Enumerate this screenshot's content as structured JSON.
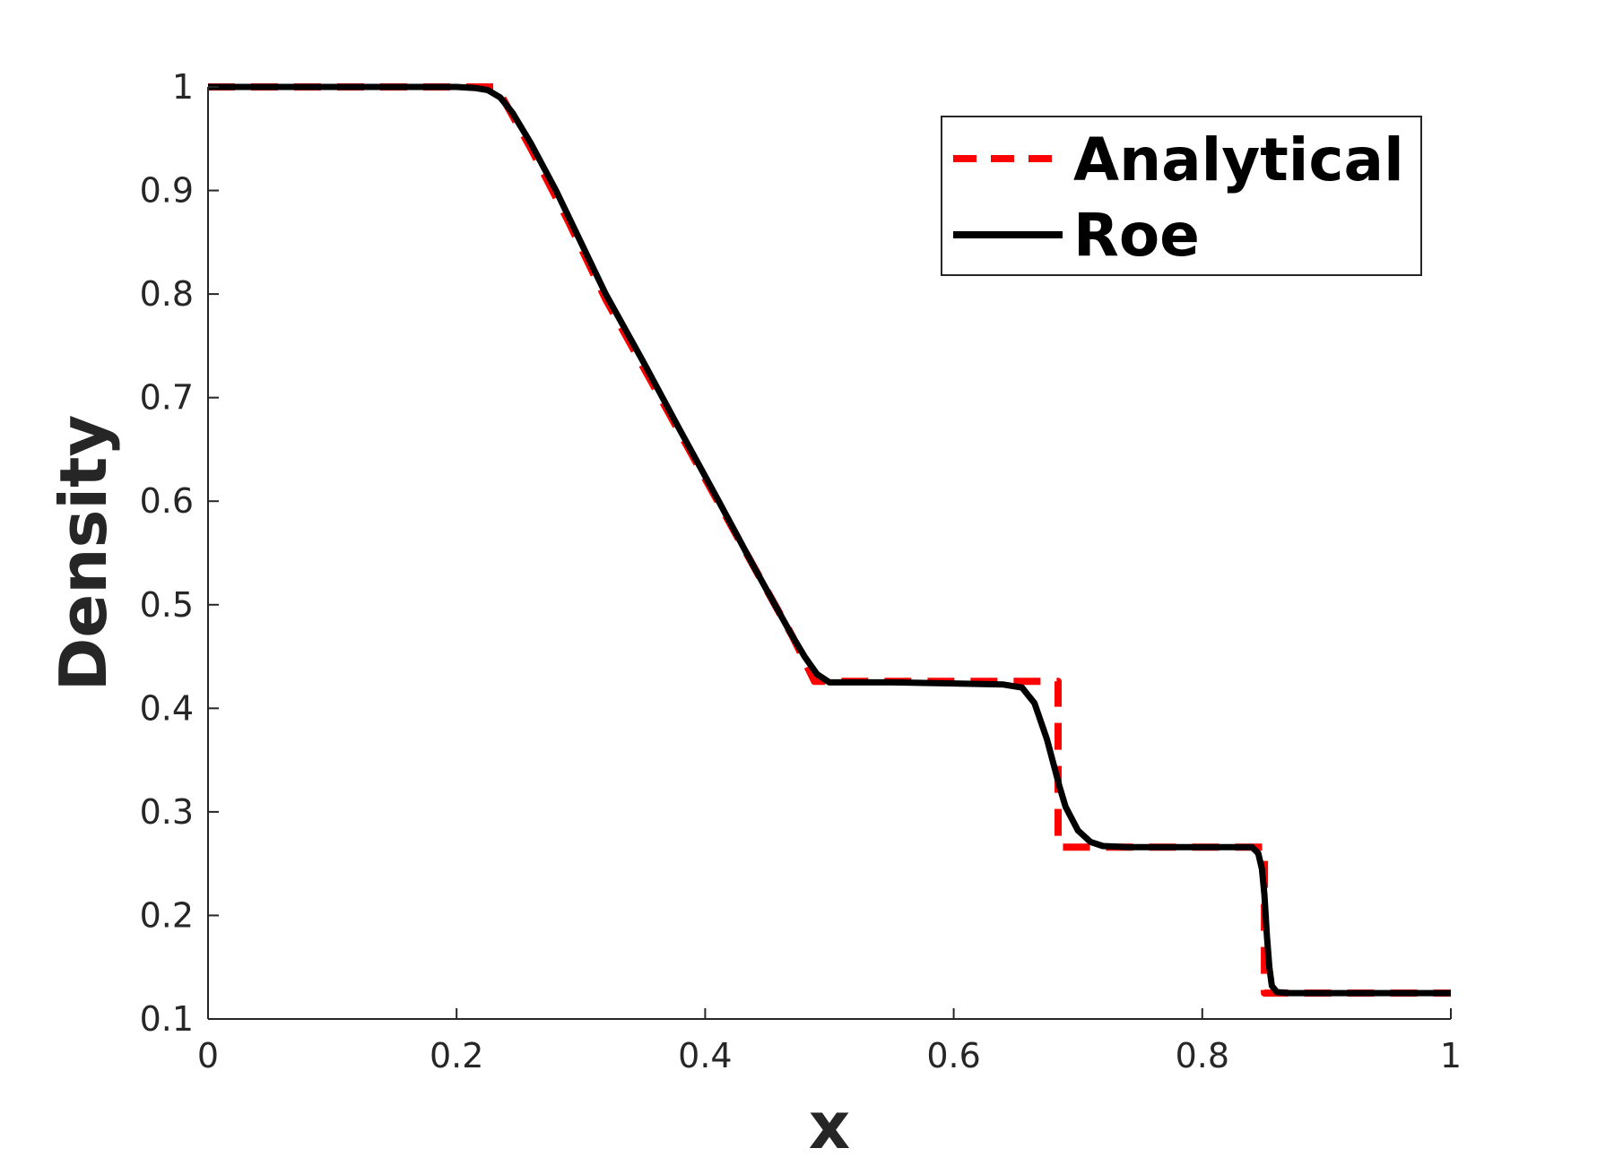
{
  "chart_data": {
    "type": "line",
    "title": "",
    "xlabel": "x",
    "ylabel": "Density",
    "xlim": [
      0,
      1
    ],
    "ylim": [
      0.1,
      1
    ],
    "xticks": [
      "0",
      "0.2",
      "0.4",
      "0.6",
      "0.8",
      "1"
    ],
    "xtick_values": [
      0,
      0.2,
      0.4,
      0.6,
      0.8,
      1
    ],
    "yticks": [
      "0.1",
      "0.2",
      "0.3",
      "0.4",
      "0.5",
      "0.6",
      "0.7",
      "0.8",
      "0.9",
      "1"
    ],
    "ytick_values": [
      0.1,
      0.2,
      0.3,
      0.4,
      0.5,
      0.6,
      0.7,
      0.8,
      0.9,
      1
    ],
    "grid": false,
    "legend_position": "top-right",
    "series": [
      {
        "name": "Analytical",
        "color": "#ff0000",
        "style": "dashed",
        "x": [
          0,
          0.232,
          0.26,
          0.29,
          0.32,
          0.35,
          0.38,
          0.41,
          0.44,
          0.47,
          0.488,
          0.55,
          0.6,
          0.65,
          0.684,
          0.684,
          0.75,
          0.8,
          0.85,
          0.85,
          0.9,
          1
        ],
        "y": [
          1.0,
          1.0,
          0.94,
          0.87,
          0.795,
          0.73,
          0.665,
          0.6,
          0.535,
          0.47,
          0.426,
          0.426,
          0.426,
          0.426,
          0.426,
          0.266,
          0.266,
          0.266,
          0.266,
          0.125,
          0.125,
          0.125
        ]
      },
      {
        "name": "Roe",
        "color": "#000000",
        "style": "solid",
        "x": [
          0,
          0.2,
          0.215,
          0.225,
          0.235,
          0.245,
          0.26,
          0.28,
          0.3,
          0.32,
          0.35,
          0.38,
          0.41,
          0.44,
          0.47,
          0.48,
          0.49,
          0.5,
          0.55,
          0.6,
          0.64,
          0.655,
          0.665,
          0.675,
          0.685,
          0.69,
          0.7,
          0.71,
          0.72,
          0.74,
          0.8,
          0.84,
          0.845,
          0.848,
          0.85,
          0.852,
          0.854,
          0.856,
          0.86,
          0.87,
          0.9,
          1
        ],
        "y": [
          1.0,
          1.0,
          0.999,
          0.997,
          0.99,
          0.975,
          0.945,
          0.9,
          0.85,
          0.8,
          0.735,
          0.668,
          0.602,
          0.535,
          0.47,
          0.45,
          0.433,
          0.425,
          0.425,
          0.424,
          0.423,
          0.42,
          0.405,
          0.37,
          0.325,
          0.305,
          0.282,
          0.271,
          0.267,
          0.266,
          0.266,
          0.266,
          0.26,
          0.245,
          0.22,
          0.18,
          0.15,
          0.132,
          0.126,
          0.125,
          0.125,
          0.125
        ]
      }
    ]
  }
}
